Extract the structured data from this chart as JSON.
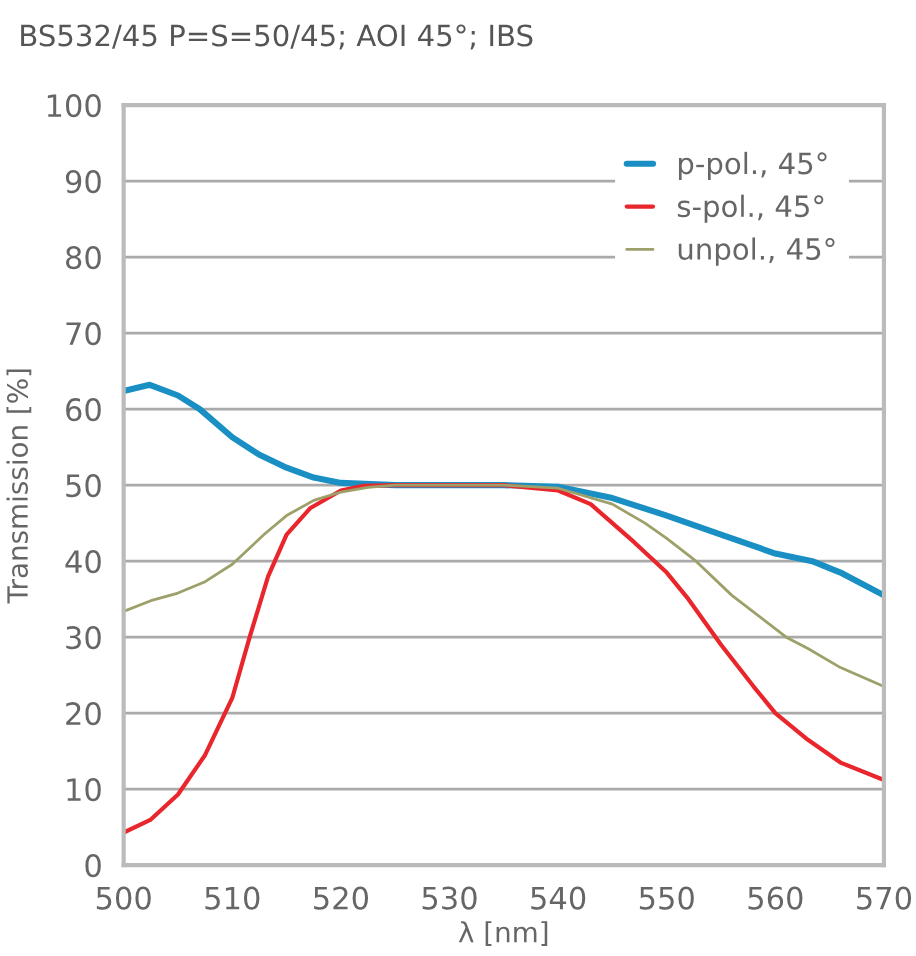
{
  "chart_data": {
    "type": "line",
    "title": "BS532/45 P=S=50/45; AOI 45°; IBS",
    "xlabel": "λ [nm]",
    "ylabel": "Transmission [%]",
    "xlim": [
      500,
      570
    ],
    "ylim": [
      0,
      100
    ],
    "xticks": [
      500,
      510,
      520,
      530,
      540,
      550,
      560,
      570
    ],
    "yticks": [
      0,
      10,
      20,
      30,
      40,
      50,
      60,
      70,
      80,
      90,
      100
    ],
    "grid": "y",
    "legend": "top right",
    "series": [
      {
        "name": "p-pol., 45°",
        "color": "#1a8fc4",
        "x": [
          500,
          502.4,
          505,
          507,
          510,
          512.5,
          515,
          517.5,
          520,
          525,
          530,
          535,
          540,
          545,
          550,
          555,
          560,
          563.4,
          566,
          570
        ],
        "values": [
          62.4,
          63.2,
          61.8,
          60,
          56.3,
          54,
          52.3,
          51,
          50.3,
          50,
          50,
          50,
          49.8,
          48.3,
          46,
          43.5,
          41,
          40,
          38.5,
          35.5
        ]
      },
      {
        "name": "s-pol., 45°",
        "color": "#e8262c",
        "x": [
          500,
          502.5,
          505,
          507.5,
          510,
          511.6,
          513.3,
          515,
          517.2,
          520,
          522,
          525,
          530,
          535,
          540,
          543,
          545,
          547,
          550,
          552,
          555,
          558,
          560,
          563,
          566,
          570
        ],
        "values": [
          4.3,
          6,
          9.3,
          14.5,
          22,
          30,
          38,
          43.5,
          47,
          49.3,
          49.9,
          50,
          50,
          50,
          49.3,
          47.5,
          45,
          42.5,
          38.5,
          35,
          29,
          23.5,
          20,
          16.5,
          13.5,
          11.2
        ]
      },
      {
        "name": "unpol., 45°",
        "color": "#9ea06a",
        "x": [
          500,
          502.5,
          505,
          507.5,
          510,
          513,
          515,
          517.5,
          520,
          522.5,
          525,
          530,
          535,
          540,
          545,
          548,
          550,
          552.7,
          556,
          561,
          563,
          566,
          570
        ],
        "values": [
          33.4,
          34.8,
          35.8,
          37.3,
          39.6,
          43.6,
          46,
          48,
          49.1,
          49.7,
          50,
          50,
          50,
          49.6,
          47.5,
          45,
          43,
          40,
          35.5,
          30,
          28.5,
          26,
          23.5
        ]
      }
    ]
  }
}
